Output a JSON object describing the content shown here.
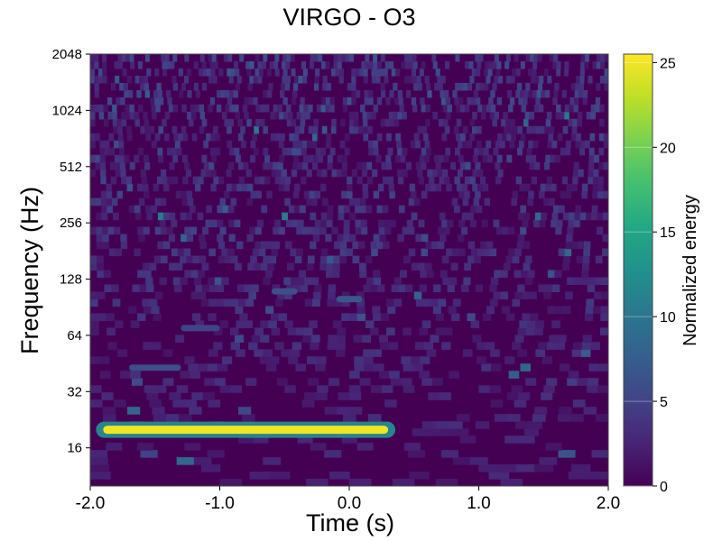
{
  "chart_data": {
    "type": "heatmap",
    "title": "VIRGO - O3",
    "xlabel": "Time (s)",
    "ylabel": "Frequency (Hz)",
    "xlim": [
      -2.0,
      2.0
    ],
    "ylim": [
      10,
      2048
    ],
    "yscale": "log2",
    "x_ticks": [
      -2.0,
      -1.0,
      0.0,
      1.0,
      2.0
    ],
    "x_tick_labels": [
      "-2.0",
      "-1.0",
      "0.0",
      "1.0",
      "2.0"
    ],
    "y_ticks": [
      16,
      32,
      64,
      128,
      256,
      512,
      1024,
      2048
    ],
    "y_tick_labels": [
      "16",
      "32",
      "64",
      "128",
      "256",
      "512",
      "1024",
      "2048"
    ],
    "colormap": "viridis",
    "colorbar": {
      "label": "Normalized energy",
      "range": [
        0,
        25.5
      ],
      "ticks": [
        0,
        5,
        10,
        15,
        20,
        25
      ],
      "tick_labels": [
        "0",
        "5",
        "10",
        "15",
        "20",
        "25"
      ]
    },
    "features": [
      {
        "time_start": -1.9,
        "time_end": 0.3,
        "frequency": 20,
        "energy": 25
      },
      {
        "time_start": -1.7,
        "time_end": -1.3,
        "frequency": 43,
        "energy": 6
      },
      {
        "time_start": -1.3,
        "time_end": -1.0,
        "frequency": 70,
        "energy": 5
      },
      {
        "time_start": -0.6,
        "time_end": -0.4,
        "frequency": 110,
        "energy": 6
      },
      {
        "time_start": -0.1,
        "time_end": 0.1,
        "frequency": 100,
        "energy": 7
      }
    ]
  }
}
